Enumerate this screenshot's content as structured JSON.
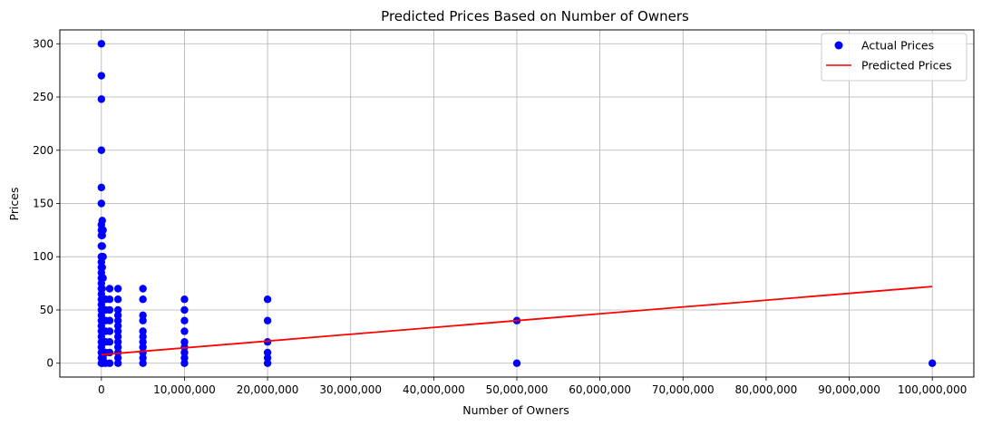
{
  "chart_data": {
    "type": "scatter",
    "title": "Predicted Prices Based on Number of Owners",
    "xlabel": "Number of Owners",
    "ylabel": "Prices",
    "xlim": [
      -5000000,
      105000000
    ],
    "ylim": [
      -13,
      313
    ],
    "x_ticks": [
      0,
      10000000,
      20000000,
      30000000,
      40000000,
      50000000,
      60000000,
      70000000,
      80000000,
      90000000,
      100000000
    ],
    "x_tick_labels": [
      "0",
      "10,000,000",
      "20,000,000",
      "30,000,000",
      "40,000,000",
      "50,000,000",
      "60,000,000",
      "70,000,000",
      "80,000,000",
      "90,000,000",
      "100,000,000"
    ],
    "y_ticks": [
      0,
      50,
      100,
      150,
      200,
      250,
      300
    ],
    "y_tick_labels": [
      "0",
      "50",
      "100",
      "150",
      "200",
      "250",
      "300"
    ],
    "grid": true,
    "legend_position": "top-right",
    "series": [
      {
        "name": "Actual Prices",
        "kind": "scatter",
        "color": "#0000ff",
        "points": [
          [
            0,
            300
          ],
          [
            0,
            270
          ],
          [
            0,
            248
          ],
          [
            0,
            200
          ],
          [
            0,
            165
          ],
          [
            0,
            150
          ],
          [
            0,
            130
          ],
          [
            0,
            125
          ],
          [
            0,
            120
          ],
          [
            0,
            110
          ],
          [
            0,
            100
          ],
          [
            0,
            95
          ],
          [
            0,
            90
          ],
          [
            0,
            85
          ],
          [
            0,
            80
          ],
          [
            0,
            75
          ],
          [
            0,
            70
          ],
          [
            0,
            65
          ],
          [
            0,
            60
          ],
          [
            0,
            55
          ],
          [
            0,
            50
          ],
          [
            0,
            45
          ],
          [
            0,
            40
          ],
          [
            0,
            35
          ],
          [
            0,
            30
          ],
          [
            0,
            25
          ],
          [
            0,
            20
          ],
          [
            0,
            15
          ],
          [
            0,
            10
          ],
          [
            0,
            5
          ],
          [
            0,
            0
          ],
          [
            100000,
            134
          ],
          [
            100000,
            120
          ],
          [
            100000,
            110
          ],
          [
            100000,
            100
          ],
          [
            100000,
            90
          ],
          [
            100000,
            80
          ],
          [
            100000,
            70
          ],
          [
            100000,
            60
          ],
          [
            100000,
            50
          ],
          [
            100000,
            40
          ],
          [
            100000,
            30
          ],
          [
            100000,
            20
          ],
          [
            100000,
            10
          ],
          [
            100000,
            0
          ],
          [
            200000,
            125
          ],
          [
            200000,
            100
          ],
          [
            200000,
            80
          ],
          [
            200000,
            60
          ],
          [
            200000,
            40
          ],
          [
            200000,
            20
          ],
          [
            200000,
            5
          ],
          [
            500000,
            60
          ],
          [
            500000,
            50
          ],
          [
            500000,
            40
          ],
          [
            500000,
            30
          ],
          [
            500000,
            20
          ],
          [
            500000,
            10
          ],
          [
            500000,
            0
          ],
          [
            1000000,
            70
          ],
          [
            1000000,
            60
          ],
          [
            1000000,
            50
          ],
          [
            1000000,
            40
          ],
          [
            1000000,
            30
          ],
          [
            1000000,
            20
          ],
          [
            1000000,
            10
          ],
          [
            1000000,
            0
          ],
          [
            2000000,
            70
          ],
          [
            2000000,
            60
          ],
          [
            2000000,
            50
          ],
          [
            2000000,
            45
          ],
          [
            2000000,
            40
          ],
          [
            2000000,
            35
          ],
          [
            2000000,
            30
          ],
          [
            2000000,
            25
          ],
          [
            2000000,
            20
          ],
          [
            2000000,
            15
          ],
          [
            2000000,
            10
          ],
          [
            2000000,
            5
          ],
          [
            2000000,
            0
          ],
          [
            5000000,
            70
          ],
          [
            5000000,
            60
          ],
          [
            5000000,
            45
          ],
          [
            5000000,
            40
          ],
          [
            5000000,
            30
          ],
          [
            5000000,
            25
          ],
          [
            5000000,
            20
          ],
          [
            5000000,
            15
          ],
          [
            5000000,
            10
          ],
          [
            5000000,
            5
          ],
          [
            5000000,
            0
          ],
          [
            10000000,
            60
          ],
          [
            10000000,
            50
          ],
          [
            10000000,
            40
          ],
          [
            10000000,
            30
          ],
          [
            10000000,
            20
          ],
          [
            10000000,
            15
          ],
          [
            10000000,
            10
          ],
          [
            10000000,
            5
          ],
          [
            10000000,
            0
          ],
          [
            20000000,
            60
          ],
          [
            20000000,
            40
          ],
          [
            20000000,
            20
          ],
          [
            20000000,
            10
          ],
          [
            20000000,
            5
          ],
          [
            20000000,
            0
          ],
          [
            50000000,
            40
          ],
          [
            50000000,
            0
          ],
          [
            100000000,
            0
          ]
        ]
      },
      {
        "name": "Predicted Prices",
        "kind": "line",
        "color": "#ff0000",
        "x": [
          0,
          100000000
        ],
        "y": [
          8,
          72
        ]
      }
    ]
  }
}
